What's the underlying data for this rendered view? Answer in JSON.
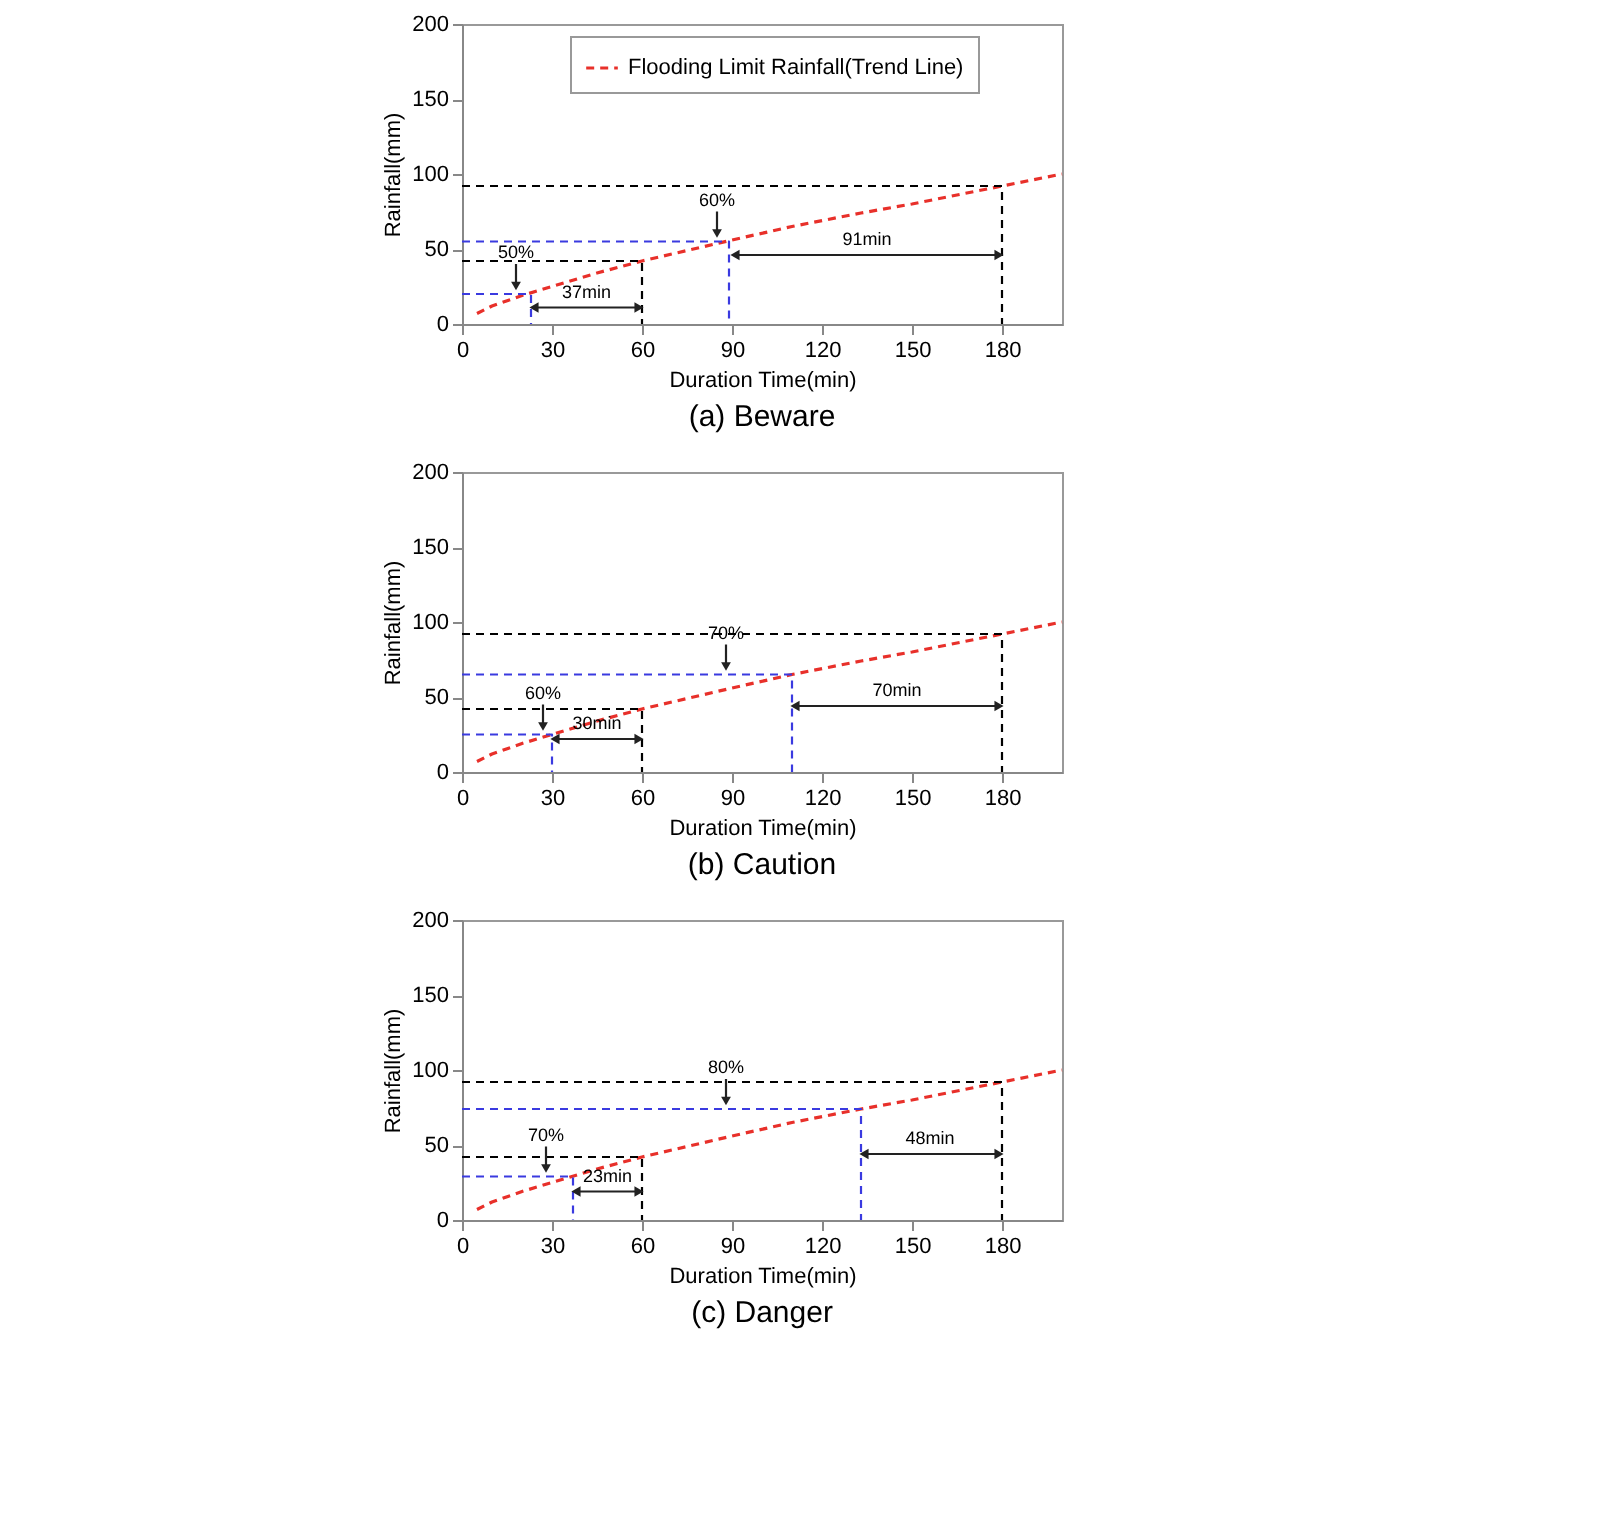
{
  "chart_data": [
    {
      "type": "line",
      "title": "(a) Beware",
      "xlabel": "Duration Time(min)",
      "ylabel": "Rainfall(mm)",
      "xlim": [
        0,
        200
      ],
      "ylim": [
        0,
        200
      ],
      "xticks": [
        0,
        30,
        60,
        90,
        120,
        150,
        180
      ],
      "yticks": [
        0,
        50,
        100,
        150,
        200
      ],
      "grid": false,
      "legend": "top",
      "series": [
        {
          "name": "Flooding Limit Rainfall(Trend Line)",
          "color": "#e8302a",
          "line_style": "dashed",
          "x": [
            5,
            10,
            20,
            30,
            45,
            60,
            75,
            90,
            110,
            133,
            150,
            180,
            200
          ],
          "values": [
            7,
            12,
            19,
            25,
            34,
            42,
            49,
            56,
            65,
            74,
            80,
            92,
            100
          ]
        },
        {
          "color": "#000000",
          "line_style": "dashed",
          "x": [
            0,
            180,
            180
          ],
          "values": [
            92,
            92,
            0
          ]
        },
        {
          "color": "#000000",
          "line_style": "dashed",
          "x": [
            0,
            60,
            60
          ],
          "values": [
            42,
            42,
            0
          ]
        },
        {
          "color": "#3a3ae0",
          "line_style": "dashed",
          "x": [
            0,
            23,
            23
          ],
          "values": [
            20,
            20,
            0
          ]
        },
        {
          "color": "#3a3ae0",
          "line_style": "dashed",
          "x": [
            0,
            89,
            89
          ],
          "values": [
            55,
            55,
            0
          ]
        },
        {
          "color": "#222222",
          "line_style": "solid",
          "marker": "triangle",
          "x": [
            24,
            59
          ],
          "values": [
            11,
            11
          ]
        },
        {
          "color": "#222222",
          "line_style": "solid",
          "marker": "triangle",
          "x": [
            91,
            179
          ],
          "values": [
            46,
            46
          ]
        }
      ],
      "annotations": [
        {
          "text": "50%",
          "x": 18,
          "y": 20
        },
        {
          "text": "37min",
          "x": 41.5,
          "y": 11
        },
        {
          "text": "60%",
          "x": 85,
          "y": 55
        },
        {
          "text": "91min",
          "x": 135,
          "y": 46
        }
      ]
    },
    {
      "type": "line",
      "title": "(b) Caution",
      "xlabel": "Duration Time(min)",
      "ylabel": "Rainfall(mm)",
      "xlim": [
        0,
        200
      ],
      "ylim": [
        0,
        200
      ],
      "xticks": [
        0,
        30,
        60,
        90,
        120,
        150,
        180
      ],
      "yticks": [
        0,
        50,
        100,
        150,
        200
      ],
      "grid": false,
      "legend": "top",
      "series": [
        {
          "name": "Flooding Limit Rainfall(Trend Line)",
          "color": "#e8302a",
          "line_style": "dashed",
          "x": [
            5,
            10,
            20,
            30,
            45,
            60,
            75,
            90,
            110,
            133,
            150,
            180,
            200
          ],
          "values": [
            7,
            12,
            19,
            25,
            34,
            42,
            49,
            56,
            65,
            74,
            80,
            92,
            100
          ]
        },
        {
          "color": "#000000",
          "line_style": "dashed",
          "x": [
            0,
            180,
            180
          ],
          "values": [
            92,
            92,
            0
          ]
        },
        {
          "color": "#000000",
          "line_style": "dashed",
          "x": [
            0,
            60,
            60
          ],
          "values": [
            42,
            42,
            0
          ]
        },
        {
          "color": "#3a3ae0",
          "line_style": "dashed",
          "x": [
            0,
            30,
            30
          ],
          "values": [
            25,
            25,
            0
          ]
        },
        {
          "color": "#3a3ae0",
          "line_style": "dashed",
          "x": [
            0,
            110,
            110
          ],
          "values": [
            65,
            65,
            0
          ]
        },
        {
          "color": "#222222",
          "line_style": "solid",
          "marker": "triangle",
          "x": [
            31,
            59
          ],
          "values": [
            22,
            22
          ]
        },
        {
          "color": "#222222",
          "line_style": "solid",
          "marker": "triangle",
          "x": [
            111,
            179
          ],
          "values": [
            44,
            44
          ]
        }
      ],
      "annotations": [
        {
          "text": "60%",
          "x": 27,
          "y": 25
        },
        {
          "text": "30min",
          "x": 45,
          "y": 22
        },
        {
          "text": "70%",
          "x": 88,
          "y": 65
        },
        {
          "text": "70min",
          "x": 145,
          "y": 44
        }
      ]
    },
    {
      "type": "line",
      "title": "(c) Danger",
      "xlabel": "Duration Time(min)",
      "ylabel": "Rainfall(mm)",
      "xlim": [
        0,
        200
      ],
      "ylim": [
        0,
        200
      ],
      "xticks": [
        0,
        30,
        60,
        90,
        120,
        150,
        180
      ],
      "yticks": [
        0,
        50,
        100,
        150,
        200
      ],
      "grid": false,
      "legend": "top",
      "series": [
        {
          "name": "Flooding Limit Rainfall(Trend Line)",
          "color": "#e8302a",
          "line_style": "dashed",
          "x": [
            5,
            10,
            20,
            30,
            45,
            60,
            75,
            90,
            110,
            133,
            150,
            180,
            200
          ],
          "values": [
            7,
            12,
            19,
            25,
            34,
            42,
            49,
            56,
            65,
            74,
            80,
            92,
            100
          ]
        },
        {
          "color": "#000000",
          "line_style": "dashed",
          "x": [
            0,
            180,
            180
          ],
          "values": [
            92,
            92,
            0
          ]
        },
        {
          "color": "#000000",
          "line_style": "dashed",
          "x": [
            0,
            60,
            60
          ],
          "values": [
            42,
            42,
            0
          ]
        },
        {
          "color": "#3a3ae0",
          "line_style": "dashed",
          "x": [
            0,
            37,
            37
          ],
          "values": [
            29,
            29,
            0
          ]
        },
        {
          "color": "#3a3ae0",
          "line_style": "dashed",
          "x": [
            0,
            133,
            133
          ],
          "values": [
            74,
            74,
            0
          ]
        },
        {
          "color": "#222222",
          "line_style": "solid",
          "marker": "triangle",
          "x": [
            38,
            59
          ],
          "values": [
            19,
            19
          ]
        },
        {
          "color": "#222222",
          "line_style": "solid",
          "marker": "triangle",
          "x": [
            134,
            179
          ],
          "values": [
            44,
            44
          ]
        }
      ],
      "annotations": [
        {
          "text": "70%",
          "x": 28,
          "y": 29
        },
        {
          "text": "23min",
          "x": 48.5,
          "y": 19
        },
        {
          "text": "80%",
          "x": 88,
          "y": 74
        },
        {
          "text": "48min",
          "x": 156,
          "y": 44
        }
      ]
    }
  ]
}
